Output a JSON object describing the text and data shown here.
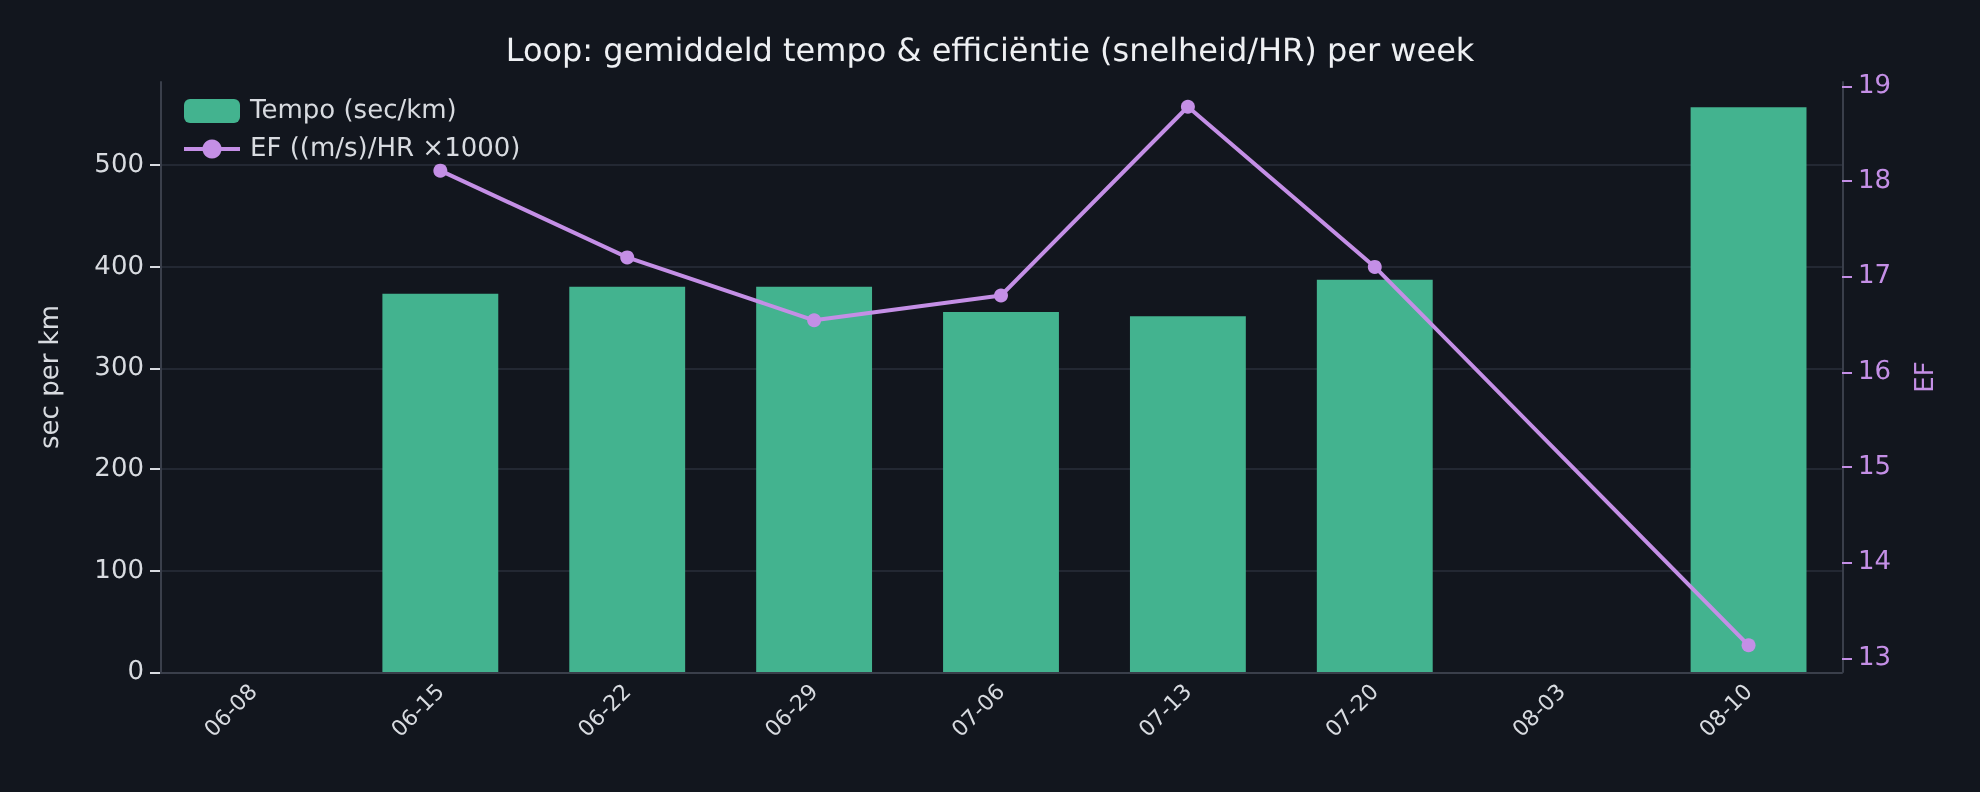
{
  "chart_data": {
    "type": "bar",
    "title": "Loop: gemiddeld tempo & efficiëntie (snelheid/HR) per week",
    "ylabel": "sec per km",
    "y2label": "EF",
    "categories": [
      "06-08",
      "06-15",
      "06-22",
      "06-29",
      "07-06",
      "07-13",
      "07-20",
      "08-03",
      "08-10"
    ],
    "series": [
      {
        "name": "Tempo (sec/km)",
        "color": "#43b38f",
        "values": [
          null,
          373,
          380,
          380,
          355,
          351,
          387,
          null,
          557
        ]
      },
      {
        "name": "EF ((m/s)/HR ×1000)",
        "type": "line",
        "axis": "y2",
        "color": "#c48fe6",
        "values": [
          null,
          18.11,
          17.2,
          16.54,
          16.8,
          18.78,
          17.1,
          null,
          13.13
        ]
      }
    ],
    "ylim": [
      0,
      582
    ],
    "yticks": [
      0,
      100,
      200,
      300,
      400,
      500
    ],
    "y2lim": [
      12.85,
      19.04
    ],
    "y2ticks": [
      13,
      14,
      15,
      16,
      17,
      18,
      19
    ],
    "grid": "y",
    "legend": "top left",
    "marker": "circle",
    "line_style": "solid"
  }
}
